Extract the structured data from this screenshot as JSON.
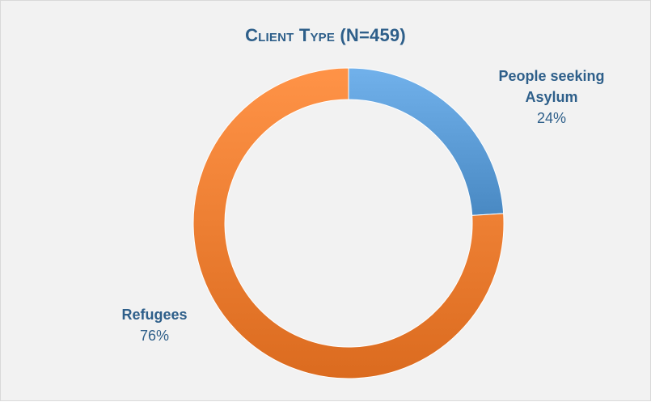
{
  "chart_data": {
    "type": "pie",
    "variant": "donut",
    "title": "Client Type (N=459)",
    "slices": [
      {
        "label": "People seeking Asylum",
        "value": 24,
        "value_label": "24%",
        "color": "#5b9bd5"
      },
      {
        "label": "Refugees",
        "value": 76,
        "value_label": "76%",
        "color": "#ed7d31"
      }
    ],
    "legend": "none",
    "label_color": "#2e5f8a",
    "background": "#f2f2f2"
  }
}
